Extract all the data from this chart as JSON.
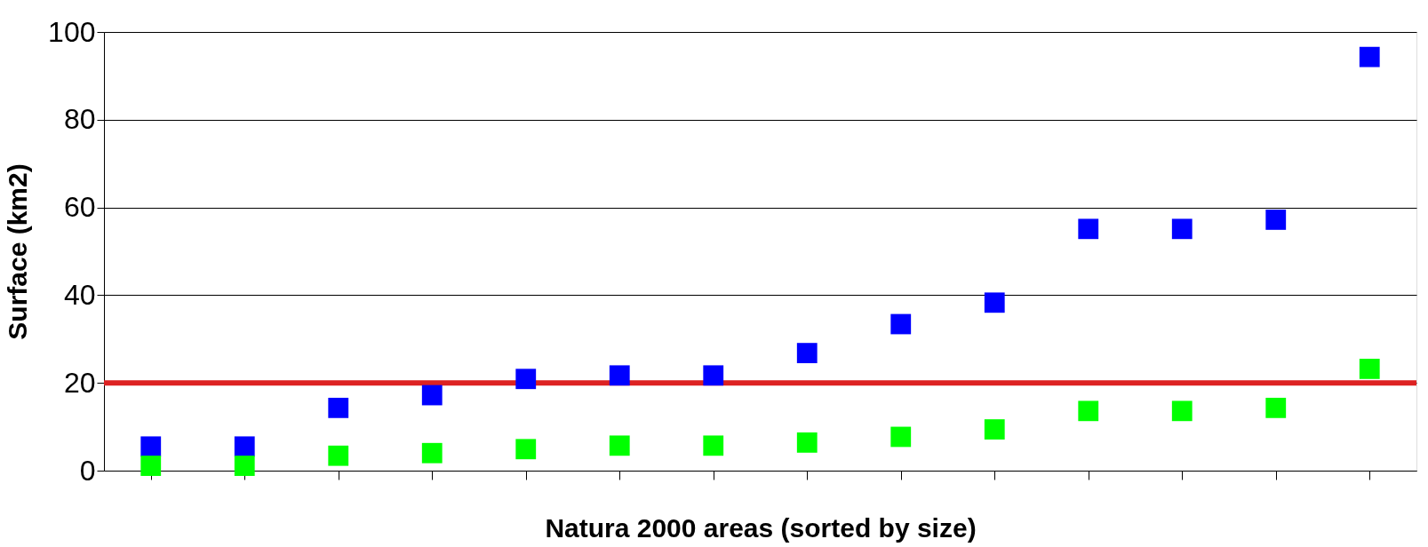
{
  "chart_data": {
    "type": "scatter",
    "xlabel": "Natura 2000 areas (sorted by size)",
    "ylabel": "Surface (km2)",
    "categories": [
      null,
      null,
      null,
      null,
      null,
      null,
      null,
      null,
      null,
      null,
      null,
      null,
      null,
      null
    ],
    "series": [
      {
        "color": "#0000ff",
        "values": [
          5.5,
          5.5,
          14.3,
          17.2,
          20.9,
          21.7,
          21.7,
          26.8,
          33.4,
          38.3,
          55.1,
          55.1,
          57.2,
          94.3
        ]
      },
      {
        "color": "#00ff00",
        "values": [
          1.1,
          1.1,
          3.4,
          4.0,
          4.9,
          5.7,
          5.7,
          6.4,
          7.7,
          9.4,
          13.6,
          13.6,
          14.3,
          23.2
        ]
      }
    ],
    "ref_lines": [
      {
        "axis": "y",
        "value": 20,
        "color": "#dd2222"
      }
    ],
    "ylim": [
      0,
      100
    ],
    "yticks": [
      0,
      20,
      40,
      60,
      80,
      100
    ],
    "grid": "y",
    "legend": false,
    "marker": "square",
    "tick_labels": "y"
  }
}
